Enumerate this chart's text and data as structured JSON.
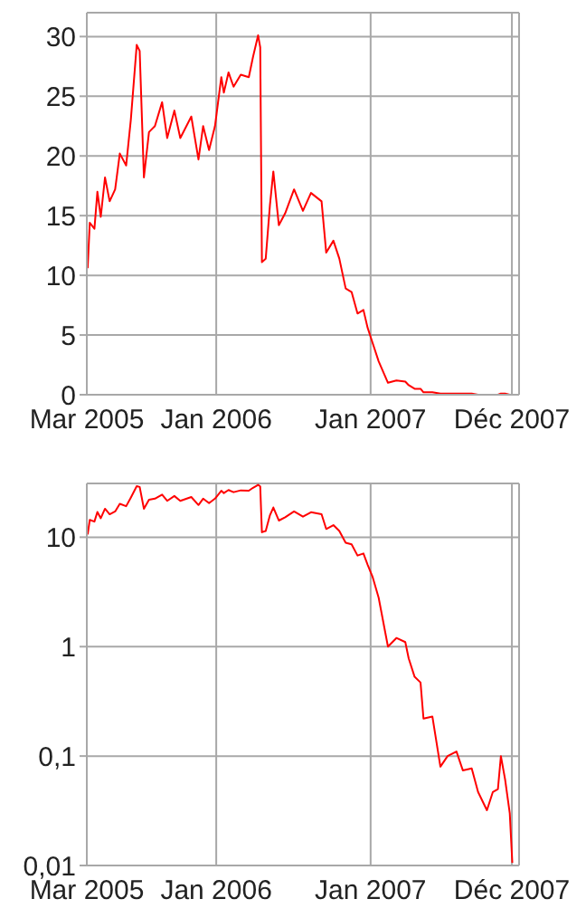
{
  "chart_data": [
    {
      "type": "line",
      "x": [
        "2005-03-03",
        "2005-03-08",
        "2005-03-19",
        "2005-03-26",
        "2005-04-03",
        "2005-04-13",
        "2005-04-24",
        "2005-05-07",
        "2005-05-18",
        "2005-06-02",
        "2005-06-13",
        "2005-06-27",
        "2005-07-04",
        "2005-07-14",
        "2005-07-26",
        "2005-08-09",
        "2005-08-26",
        "2005-09-07",
        "2005-09-24",
        "2005-10-08",
        "2005-11-03",
        "2005-11-20",
        "2005-12-01",
        "2005-12-15",
        "2005-12-29",
        "2006-01-13",
        "2006-01-19",
        "2006-01-30",
        "2006-02-11",
        "2006-02-28",
        "2006-03-19",
        "2006-03-29",
        "2006-04-10",
        "2006-04-15",
        "2006-04-19",
        "2006-04-28",
        "2006-05-08",
        "2006-05-16",
        "2006-05-29",
        "2006-06-13",
        "2006-07-04",
        "2006-07-25",
        "2006-08-13",
        "2006-09-07",
        "2006-09-18",
        "2006-10-05",
        "2006-10-19",
        "2006-11-03",
        "2006-11-17",
        "2006-12-01",
        "2006-12-15",
        "2006-12-25",
        "2007-01-06",
        "2007-01-20",
        "2007-02-11",
        "2007-03-03",
        "2007-03-24",
        "2007-04-01",
        "2007-04-15",
        "2007-04-29",
        "2007-05-06",
        "2007-05-27",
        "2007-06-15",
        "2007-07-02",
        "2007-07-23",
        "2007-08-07",
        "2007-08-28",
        "2007-09-12",
        "2007-10-03",
        "2007-10-17",
        "2007-10-29",
        "2007-11-05",
        "2007-11-15",
        "2007-11-26",
        "2007-12-02"
      ],
      "series": [
        {
          "color": "#ff0000",
          "values": [
            10.6,
            14.4,
            13.9,
            17,
            14.9,
            18.2,
            16.2,
            17.2,
            20.2,
            19.2,
            23,
            29.3,
            28.8,
            18.2,
            22,
            22.5,
            24.5,
            21.5,
            23.8,
            21.5,
            23.3,
            19.7,
            22.5,
            20.5,
            22.5,
            26.6,
            25.3,
            27,
            25.8,
            26.8,
            26.6,
            28.3,
            30.1,
            29.1,
            11.1,
            11.4,
            15.9,
            18.7,
            14.2,
            15.2,
            17.2,
            15.4,
            16.9,
            16.2,
            11.9,
            12.9,
            11.4,
            8.9,
            8.6,
            6.8,
            7.1,
            5.6,
            4.3,
            2.8,
            1.0,
            1.2,
            1.1,
            0.8,
            0.5,
            0.5,
            0.2,
            0.2,
            0.1,
            0.1,
            0.1,
            0.1,
            0.1,
            0,
            0,
            0,
            0,
            0.1,
            0.1,
            0,
            0
          ]
        }
      ],
      "xlim": [
        "2005-03-01",
        "2007-12-18"
      ],
      "xticks": [
        {
          "value": "2005-03-01",
          "label": "Mar 2005"
        },
        {
          "value": "2006-01-01",
          "label": "Jan 2006"
        },
        {
          "value": "2007-01-01",
          "label": "Jan 2007"
        },
        {
          "value": "2007-12-01",
          "label": "Déc 2007"
        }
      ],
      "ylim": [
        0,
        32
      ],
      "yticks": [
        0,
        5,
        10,
        15,
        20,
        25,
        30
      ],
      "grid": true
    },
    {
      "type": "line",
      "x": [
        "2005-03-03",
        "2005-03-08",
        "2005-03-19",
        "2005-03-26",
        "2005-04-03",
        "2005-04-13",
        "2005-04-24",
        "2005-05-07",
        "2005-05-18",
        "2005-06-02",
        "2005-06-13",
        "2005-06-27",
        "2005-07-04",
        "2005-07-14",
        "2005-07-26",
        "2005-08-09",
        "2005-08-26",
        "2005-09-07",
        "2005-09-24",
        "2005-10-08",
        "2005-11-03",
        "2005-11-20",
        "2005-12-01",
        "2005-12-15",
        "2005-12-29",
        "2006-01-13",
        "2006-01-19",
        "2006-01-30",
        "2006-02-11",
        "2006-02-28",
        "2006-03-19",
        "2006-03-29",
        "2006-04-10",
        "2006-04-15",
        "2006-04-19",
        "2006-04-28",
        "2006-05-08",
        "2006-05-16",
        "2006-05-29",
        "2006-06-13",
        "2006-07-04",
        "2006-07-25",
        "2006-08-13",
        "2006-09-07",
        "2006-09-18",
        "2006-10-05",
        "2006-10-19",
        "2006-11-03",
        "2006-11-17",
        "2006-12-01",
        "2006-12-15",
        "2006-12-25",
        "2007-01-06",
        "2007-01-20",
        "2007-02-11",
        "2007-03-03",
        "2007-03-24",
        "2007-04-01",
        "2007-04-15",
        "2007-04-29",
        "2007-05-06",
        "2007-05-27",
        "2007-06-15",
        "2007-07-02",
        "2007-07-23",
        "2007-08-07",
        "2007-08-28",
        "2007-09-12",
        "2007-10-03",
        "2007-10-17",
        "2007-10-29",
        "2007-11-05",
        "2007-11-15",
        "2007-11-26",
        "2007-12-02"
      ],
      "series": [
        {
          "color": "#ff0000",
          "values": [
            10.6,
            14.4,
            13.9,
            17,
            14.9,
            18.2,
            16.2,
            17.2,
            20.2,
            19.2,
            23,
            29.3,
            28.8,
            18.2,
            22,
            22.5,
            24.5,
            21.5,
            23.8,
            21.5,
            23.3,
            19.7,
            22.5,
            20.5,
            22.5,
            26.6,
            25.3,
            27,
            25.8,
            26.8,
            26.6,
            28.3,
            30.1,
            29.1,
            11.1,
            11.4,
            15.9,
            18.7,
            14.2,
            15.2,
            17.2,
            15.4,
            16.9,
            16.2,
            11.9,
            12.9,
            11.4,
            8.9,
            8.6,
            6.8,
            7.1,
            5.6,
            4.3,
            2.8,
            1.0,
            1.2,
            1.1,
            0.78,
            0.53,
            0.47,
            0.22,
            0.23,
            0.08,
            0.1,
            0.11,
            0.074,
            0.077,
            0.047,
            0.032,
            0.047,
            0.05,
            0.1,
            0.061,
            0.03,
            0.0106
          ]
        }
      ],
      "xlim": [
        "2005-03-01",
        "2007-12-18"
      ],
      "xticks": [
        {
          "value": "2005-03-01",
          "label": "Mar 2005"
        },
        {
          "value": "2006-01-01",
          "label": "Jan 2006"
        },
        {
          "value": "2007-01-01",
          "label": "Jan 2007"
        },
        {
          "value": "2007-12-01",
          "label": "Déc 2007"
        }
      ],
      "ylim": [
        0.01,
        31
      ],
      "yticks": [
        {
          "value": 0.01,
          "label": "0,01"
        },
        {
          "value": 0.1,
          "label": "0,1"
        },
        1,
        10
      ],
      "log": true,
      "grid": true
    }
  ]
}
